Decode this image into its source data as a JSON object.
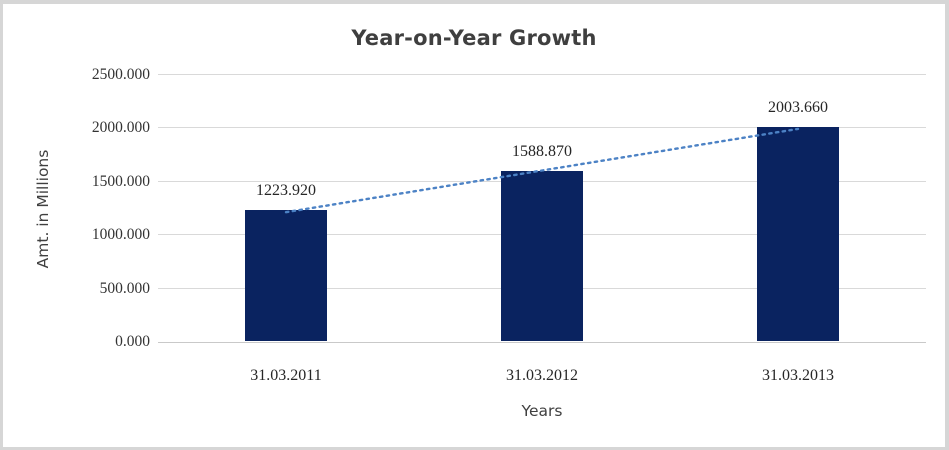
{
  "chart_data": {
    "type": "bar",
    "title": "Year-on-Year Growth",
    "xlabel": "Years",
    "ylabel": "Amt. in Millions",
    "categories": [
      "31.03.2011",
      "31.03.2012",
      "31.03.2013"
    ],
    "values": [
      1223.92,
      1588.87,
      2003.66
    ],
    "value_labels": [
      "1223.920",
      "1588.870",
      "2003.660"
    ],
    "ylim": [
      0,
      2500
    ],
    "yticks": [
      0,
      500,
      1000,
      1500,
      2000,
      2500
    ],
    "ytick_labels": [
      "0.000",
      "500.000",
      "1000.000",
      "1500.000",
      "2000.000",
      "2500.000"
    ],
    "grid": true,
    "legend": "none",
    "trendline": {
      "type": "linear",
      "style": "dotted",
      "color": "#4c82c5"
    },
    "colors": {
      "bar": "#0a2360",
      "gridline": "#d9d9d9",
      "axis_line": "#c9c9c9",
      "label_text": "#262626",
      "title_text": "#3f3f3f",
      "frame_border": "#d6d6d6"
    }
  }
}
